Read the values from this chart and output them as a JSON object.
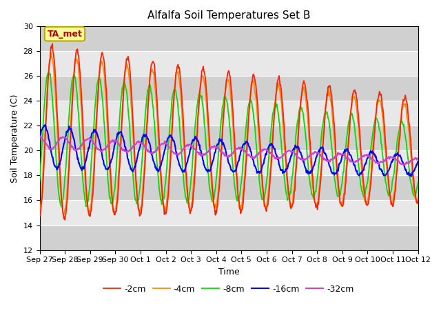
{
  "title": "Alfalfa Soil Temperatures Set B",
  "xlabel": "Time",
  "ylabel": "Soil Temperature (C)",
  "ylim": [
    12,
    30
  ],
  "yticks": [
    12,
    14,
    16,
    18,
    20,
    22,
    24,
    26,
    28,
    30
  ],
  "annotation_text": "TA_met",
  "annotation_box_color": "#ffff99",
  "annotation_border_color": "#bbaa00",
  "annotation_text_color": "#aa0000",
  "bg_color": "#e8e8e8",
  "plot_bg_color": "#e8e8e8",
  "band_color": "#d0d0d0",
  "series": {
    "-2cm": {
      "color": "#ff2200",
      "lw": 1.3
    },
    "-4cm": {
      "color": "#ff8800",
      "lw": 1.3
    },
    "-8cm": {
      "color": "#00dd00",
      "lw": 1.3
    },
    "-16cm": {
      "color": "#0000ff",
      "lw": 1.5
    },
    "-32cm": {
      "color": "#cc44cc",
      "lw": 1.5
    }
  },
  "xtick_labels": [
    "Sep 27",
    "Sep 28",
    "Sep 29",
    "Sep 30",
    "Oct 1",
    "Oct 2",
    "Oct 3",
    "Oct 4",
    "Oct 5",
    "Oct 6",
    "Oct 7",
    "Oct 8",
    "Oct 9",
    "Oct 10",
    "Oct 11",
    "Oct 12"
  ],
  "n_days": 15,
  "points_per_day": 48
}
